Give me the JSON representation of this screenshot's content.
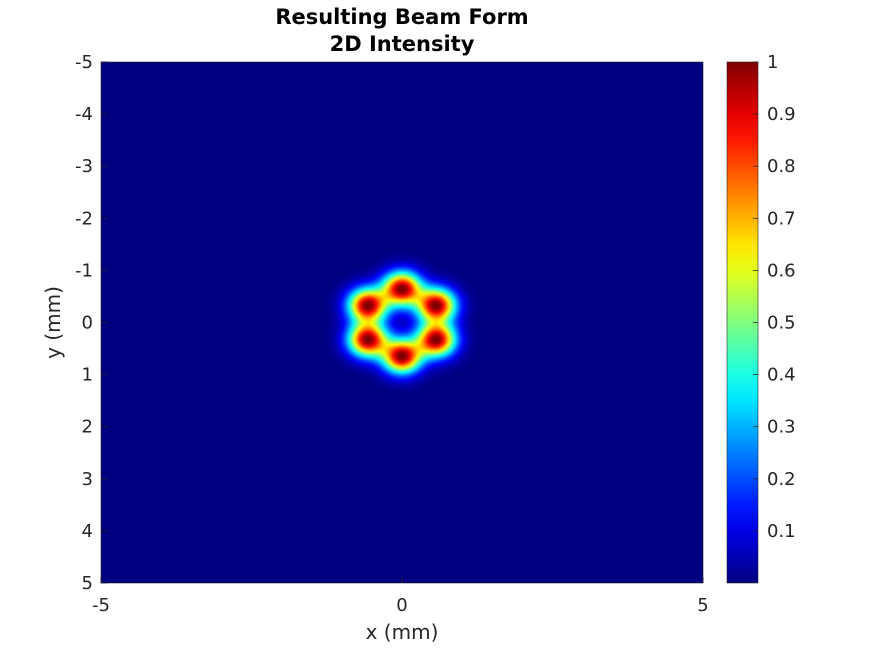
{
  "chart_data": {
    "type": "heatmap",
    "title": [
      "Resulting Beam Form",
      "2D Intensity"
    ],
    "xlabel": "x (mm)",
    "ylabel": "y (mm)",
    "xlim": [
      -5,
      5
    ],
    "ylim": [
      -5,
      5
    ],
    "y_axis_direction": "reversed",
    "colormap": "jet",
    "background_value": 0,
    "x_ticks": [
      -5,
      0,
      5
    ],
    "y_ticks": [
      -5,
      -4,
      -3,
      -2,
      -1,
      0,
      1,
      2,
      3,
      4,
      5
    ],
    "colorbar": {
      "range": [
        0,
        1
      ],
      "ticks": [
        0.1,
        0.2,
        0.3,
        0.4,
        0.5,
        0.6,
        0.7,
        0.8,
        0.9,
        1
      ]
    },
    "peaks": [
      {
        "x": 0.0,
        "y": -0.65,
        "intensity": 1.0
      },
      {
        "x": 0.57,
        "y": -0.33,
        "intensity": 1.0
      },
      {
        "x": 0.57,
        "y": 0.33,
        "intensity": 1.0
      },
      {
        "x": 0.0,
        "y": 0.65,
        "intensity": 1.0
      },
      {
        "x": -0.57,
        "y": 0.33,
        "intensity": 1.0
      },
      {
        "x": -0.57,
        "y": -0.33,
        "intensity": 1.0
      }
    ],
    "peak_width_mm": 0.22,
    "grid": false
  }
}
